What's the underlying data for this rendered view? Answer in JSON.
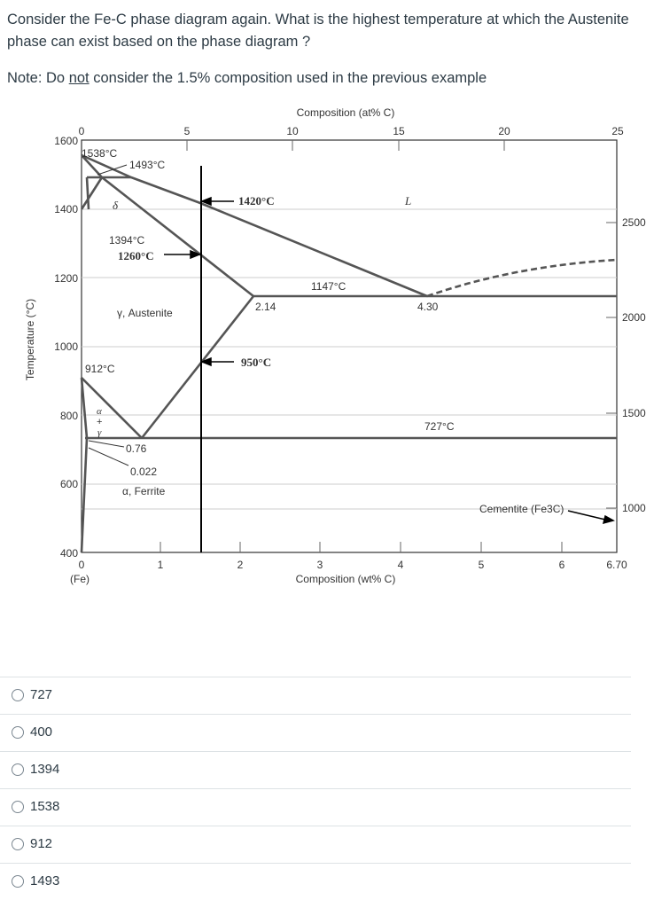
{
  "question": {
    "text": "Consider the Fe-C phase diagram again. What is the highest temperature at which the Austenite phase can exist based on the phase diagram ?",
    "note_prefix": "Note: Do ",
    "note_underlined": "not",
    "note_suffix": " consider the 1.5% composition used in the previous example"
  },
  "diagram": {
    "top_axis_title": "Composition (at% C)",
    "top_ticks": [
      "0",
      "5",
      "10",
      "15",
      "20",
      "25"
    ],
    "bottom_axis_title": "Composition (wt% C)",
    "bottom_ticks": [
      "0",
      "1",
      "2",
      "3",
      "4",
      "5",
      "6",
      "6.70"
    ],
    "bottom_origin_label": "(Fe)",
    "left_axis_title": "Temperature (°C)",
    "left_ticks": [
      "1600",
      "1400",
      "1200",
      "1000",
      "800",
      "600",
      "400"
    ],
    "right_ticks": [
      "2500",
      "2000",
      "1500",
      "1000"
    ],
    "labels": {
      "t1538": "1538°C",
      "t1493": "1493°C",
      "delta": "δ",
      "t1394": "1394°C",
      "t1260": "1260°C",
      "t1420": "1420°C",
      "liquid": "L",
      "t1147": "1147°C",
      "c214": "2.14",
      "c430": "4.30",
      "austenite": "γ, Austenite",
      "t950": "950°C",
      "t912": "912°C",
      "alpha_gamma_a": "α",
      "alpha_gamma_plus": "+",
      "alpha_gamma_g": "γ",
      "t727": "727°C",
      "c076": "0.76",
      "c0022": "0.022",
      "ferrite": "α, Ferrite",
      "cementite": "Cementite (Fe3C)"
    },
    "colors": {
      "phase_line": "#555555",
      "marker_line": "#000000",
      "grid": "#cccccc"
    }
  },
  "options": [
    {
      "label": "727"
    },
    {
      "label": "400"
    },
    {
      "label": "1394"
    },
    {
      "label": "1538"
    },
    {
      "label": "912"
    },
    {
      "label": "1493"
    }
  ]
}
